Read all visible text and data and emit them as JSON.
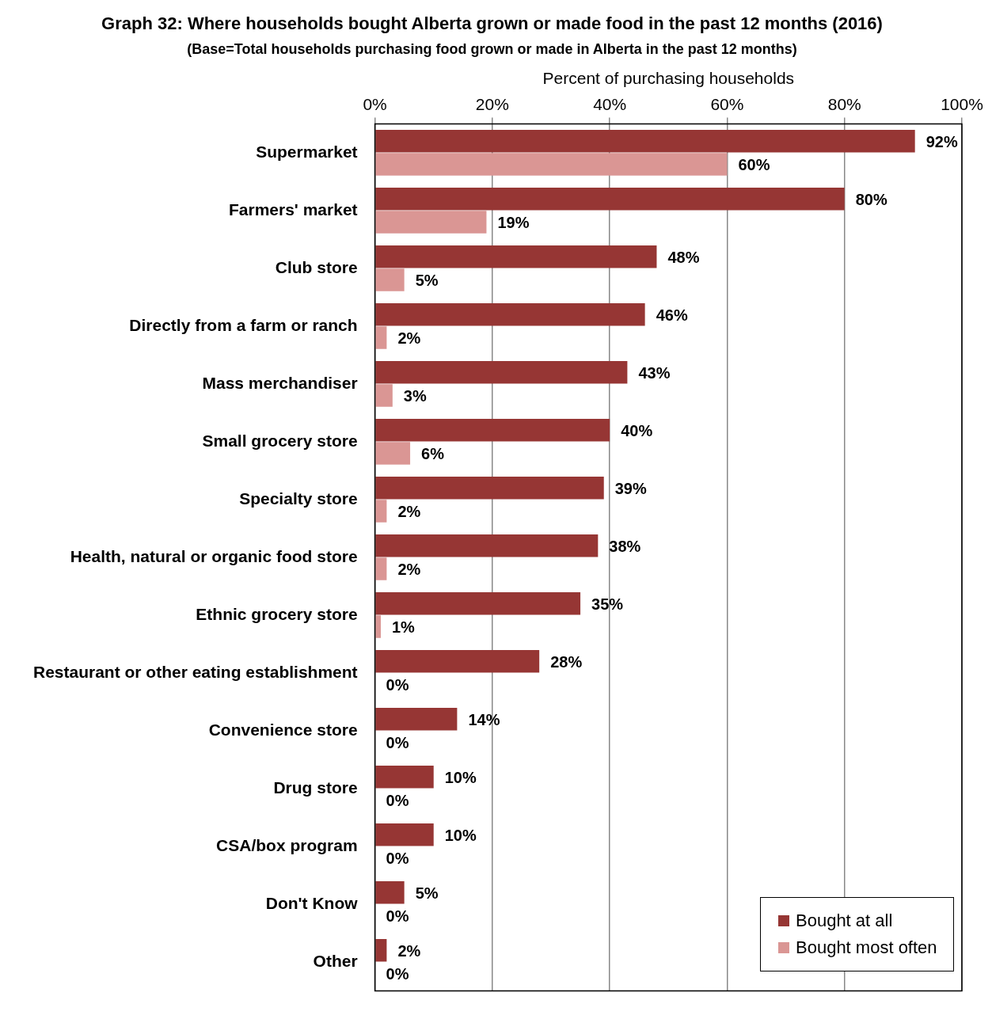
{
  "chart_data": {
    "type": "bar",
    "orientation": "horizontal",
    "title": "Graph 32: Where households bought Alberta grown or made food in the past 12 months (2016)",
    "subtitle": "(Base=Total households purchasing food grown or made in Alberta in the past 12 months)",
    "xlabel": "Percent of purchasing households",
    "categories": [
      "Supermarket",
      "Farmers' market",
      "Club store",
      "Directly from a farm or ranch",
      "Mass merchandiser",
      "Small grocery store",
      "Specialty store",
      "Health, natural or organic food store",
      "Ethnic grocery store",
      "Restaurant or other eating establishment",
      "Convenience store",
      "Drug store",
      "CSA/box program",
      "Don't Know",
      "Other"
    ],
    "series": [
      {
        "name": "Bought at all",
        "color": "#963634",
        "values": [
          92,
          80,
          48,
          46,
          43,
          40,
          39,
          38,
          35,
          28,
          14,
          10,
          10,
          5,
          2
        ],
        "value_labels": [
          "92%",
          "80%",
          "48%",
          "46%",
          "43%",
          "40%",
          "39%",
          "38%",
          "35%",
          "28%",
          "14%",
          "10%",
          "10%",
          "5%",
          "2%"
        ]
      },
      {
        "name": "Bought most often",
        "color": "#da9694",
        "values": [
          60,
          19,
          5,
          2,
          3,
          6,
          2,
          2,
          1,
          0,
          0,
          0,
          0,
          0,
          0
        ],
        "value_labels": [
          "60%",
          "19%",
          "5%",
          "2%",
          "3%",
          "6%",
          "2%",
          "2%",
          "1%",
          "0%",
          "0%",
          "0%",
          "0%",
          "0%",
          "0%"
        ]
      }
    ],
    "xlim": [
      0,
      100
    ],
    "xticks": [
      {
        "value": 0,
        "label": "0%"
      },
      {
        "value": 20,
        "label": "20%"
      },
      {
        "value": 40,
        "label": "40%"
      },
      {
        "value": 60,
        "label": "60%"
      },
      {
        "value": 80,
        "label": "80%"
      },
      {
        "value": 100,
        "label": "100%"
      }
    ],
    "grid": "x",
    "legend": "bottom right"
  }
}
